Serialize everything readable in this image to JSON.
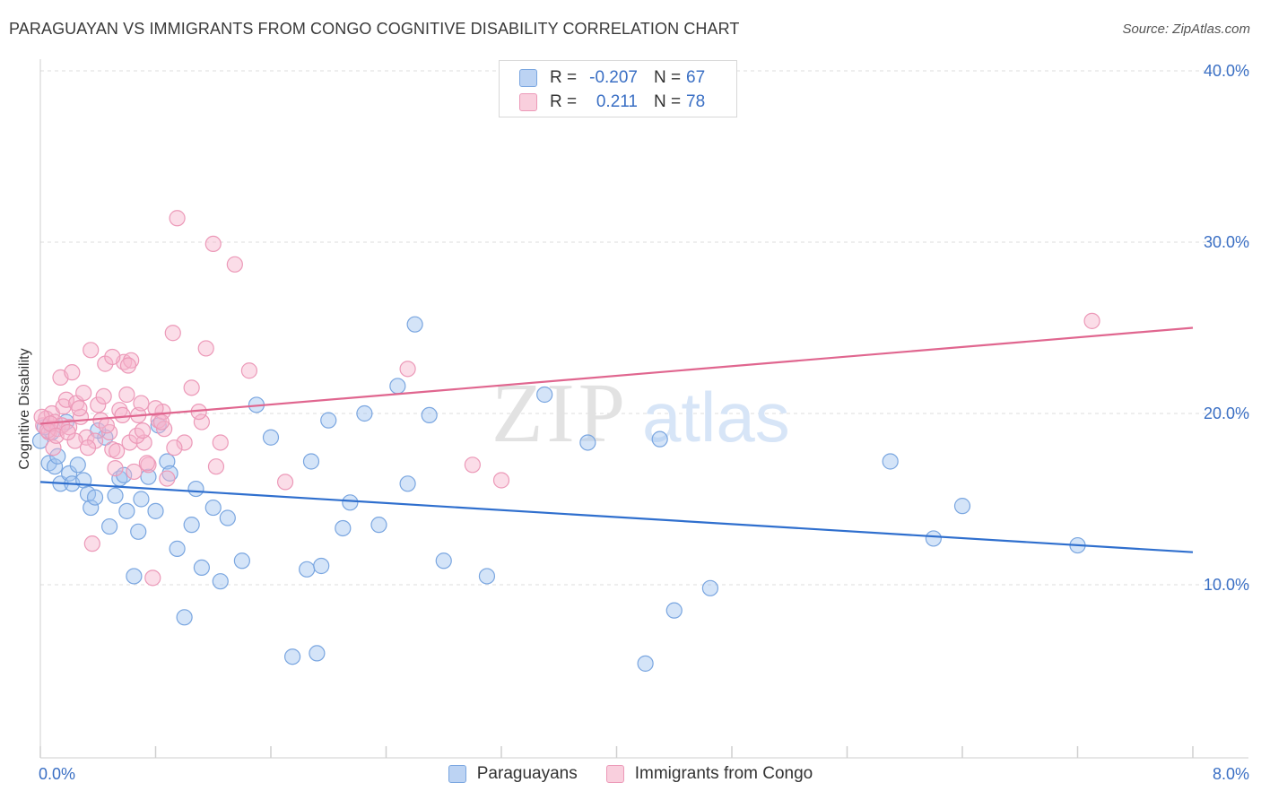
{
  "header": {
    "title": "PARAGUAYAN VS IMMIGRANTS FROM CONGO COGNITIVE DISABILITY CORRELATION CHART",
    "source": "Source: ZipAtlas.com"
  },
  "watermark": {
    "zip": "ZIP",
    "atlas": "atlas"
  },
  "legend": {
    "rows": [
      {
        "r_label": "R =",
        "r_value": "-0.207",
        "n_label": "N =",
        "n_value": "67",
        "color": "#a9c8f0",
        "border": "#6f9fdc"
      },
      {
        "r_label": "R =",
        "r_value": "0.211",
        "n_label": "N =",
        "n_value": "78",
        "color": "#f6bcd0",
        "border": "#e891b1"
      }
    ]
  },
  "bottom_legend": {
    "items": [
      {
        "label": "Paraguayans",
        "color": "#a9c8f0",
        "border": "#6f9fdc"
      },
      {
        "label": "Immigrants from Congo",
        "color": "#f6bcd0",
        "border": "#e891b1"
      }
    ]
  },
  "colors": {
    "blue_fill": "rgba(160,195,240,0.45)",
    "blue_stroke": "#7aa6e0",
    "blue_line": "#2f6fce",
    "pink_fill": "rgba(246,180,204,0.45)",
    "pink_stroke": "#ec99b8",
    "pink_line": "#e0668f",
    "tick_text": "#3a6fc4"
  },
  "chart_data": {
    "type": "scatter",
    "title": "PARAGUAYAN VS IMMIGRANTS FROM CONGO COGNITIVE DISABILITY CORRELATION CHART",
    "xlabel": "",
    "ylabel": "Cognitive Disability",
    "xlim": [
      0,
      8
    ],
    "ylim": [
      0,
      40
    ],
    "x_tick_labels": [
      {
        "value": 0,
        "label": "0.0%"
      },
      {
        "value": 8,
        "label": "8.0%"
      }
    ],
    "y_tick_labels": [
      {
        "value": 10,
        "label": "10.0%"
      },
      {
        "value": 20,
        "label": "20.0%"
      },
      {
        "value": 30,
        "label": "30.0%"
      },
      {
        "value": 40,
        "label": "40.0%"
      }
    ],
    "gridlines": [
      10,
      20,
      30,
      40
    ],
    "series": [
      {
        "name": "Paraguayans",
        "R": -0.207,
        "N": 67,
        "trend": {
          "x": [
            0,
            8
          ],
          "y": [
            16.0,
            11.9
          ]
        },
        "points": [
          [
            0.0,
            18.4
          ],
          [
            0.06,
            17.1
          ],
          [
            0.1,
            16.9
          ],
          [
            0.12,
            17.5
          ],
          [
            0.14,
            15.9
          ],
          [
            0.18,
            19.5
          ],
          [
            0.2,
            16.5
          ],
          [
            0.22,
            15.9
          ],
          [
            0.26,
            17.0
          ],
          [
            0.3,
            16.1
          ],
          [
            0.33,
            15.3
          ],
          [
            0.35,
            14.5
          ],
          [
            0.38,
            15.1
          ],
          [
            0.45,
            18.6
          ],
          [
            0.48,
            13.4
          ],
          [
            0.52,
            15.2
          ],
          [
            0.55,
            16.2
          ],
          [
            0.6,
            14.3
          ],
          [
            0.65,
            10.5
          ],
          [
            0.68,
            13.1
          ],
          [
            0.7,
            15.0
          ],
          [
            0.75,
            16.3
          ],
          [
            0.8,
            14.3
          ],
          [
            0.82,
            19.3
          ],
          [
            0.88,
            17.2
          ],
          [
            0.9,
            16.5
          ],
          [
            0.95,
            12.1
          ],
          [
            1.0,
            8.1
          ],
          [
            1.05,
            13.5
          ],
          [
            1.12,
            11.0
          ],
          [
            1.2,
            14.5
          ],
          [
            1.25,
            10.2
          ],
          [
            1.3,
            13.9
          ],
          [
            1.4,
            11.4
          ],
          [
            1.5,
            20.5
          ],
          [
            1.6,
            18.6
          ],
          [
            1.75,
            5.8
          ],
          [
            1.85,
            10.9
          ],
          [
            1.88,
            17.2
          ],
          [
            1.92,
            6.0
          ],
          [
            1.95,
            11.1
          ],
          [
            2.0,
            19.6
          ],
          [
            2.1,
            13.3
          ],
          [
            2.15,
            14.8
          ],
          [
            2.25,
            20.0
          ],
          [
            2.35,
            13.5
          ],
          [
            2.48,
            21.6
          ],
          [
            2.55,
            15.9
          ],
          [
            2.6,
            25.2
          ],
          [
            2.7,
            19.9
          ],
          [
            2.8,
            11.4
          ],
          [
            3.1,
            10.5
          ],
          [
            3.5,
            21.1
          ],
          [
            3.8,
            18.3
          ],
          [
            4.2,
            5.4
          ],
          [
            4.3,
            18.5
          ],
          [
            4.4,
            8.5
          ],
          [
            4.65,
            9.8
          ],
          [
            5.9,
            17.2
          ],
          [
            6.2,
            12.7
          ],
          [
            6.4,
            14.6
          ],
          [
            7.2,
            12.3
          ],
          [
            0.08,
            18.9
          ],
          [
            0.03,
            19.2
          ],
          [
            0.4,
            19.0
          ],
          [
            0.58,
            16.4
          ],
          [
            1.08,
            15.6
          ]
        ]
      },
      {
        "name": "Immigrants from Congo",
        "R": 0.211,
        "N": 78,
        "trend": {
          "x": [
            0,
            8
          ],
          "y": [
            19.4,
            25.0
          ]
        },
        "points": [
          [
            0.02,
            19.3
          ],
          [
            0.04,
            19.7
          ],
          [
            0.06,
            18.9
          ],
          [
            0.08,
            20.0
          ],
          [
            0.1,
            19.5
          ],
          [
            0.12,
            19.1
          ],
          [
            0.14,
            22.1
          ],
          [
            0.16,
            20.4
          ],
          [
            0.18,
            20.8
          ],
          [
            0.2,
            19.2
          ],
          [
            0.22,
            22.4
          ],
          [
            0.25,
            20.6
          ],
          [
            0.28,
            19.8
          ],
          [
            0.3,
            21.2
          ],
          [
            0.32,
            18.6
          ],
          [
            0.35,
            23.7
          ],
          [
            0.38,
            18.4
          ],
          [
            0.4,
            20.5
          ],
          [
            0.42,
            19.6
          ],
          [
            0.45,
            22.9
          ],
          [
            0.48,
            18.9
          ],
          [
            0.5,
            17.9
          ],
          [
            0.52,
            16.8
          ],
          [
            0.55,
            20.2
          ],
          [
            0.58,
            23.0
          ],
          [
            0.6,
            21.1
          ],
          [
            0.62,
            18.3
          ],
          [
            0.65,
            16.6
          ],
          [
            0.68,
            19.9
          ],
          [
            0.7,
            20.6
          ],
          [
            0.72,
            18.3
          ],
          [
            0.75,
            17.0
          ],
          [
            0.78,
            10.4
          ],
          [
            0.82,
            19.6
          ],
          [
            0.85,
            20.1
          ],
          [
            0.88,
            16.2
          ],
          [
            0.92,
            24.7
          ],
          [
            0.95,
            31.4
          ],
          [
            1.0,
            18.3
          ],
          [
            1.05,
            21.5
          ],
          [
            1.12,
            19.5
          ],
          [
            1.15,
            23.8
          ],
          [
            1.2,
            29.9
          ],
          [
            1.25,
            18.3
          ],
          [
            1.35,
            28.7
          ],
          [
            1.45,
            22.5
          ],
          [
            1.7,
            16.0
          ],
          [
            2.55,
            22.6
          ],
          [
            3.0,
            17.0
          ],
          [
            3.2,
            16.1
          ],
          [
            7.3,
            25.4
          ],
          [
            0.05,
            19.0
          ],
          [
            0.09,
            18.0
          ],
          [
            0.15,
            19.3
          ],
          [
            0.24,
            18.4
          ],
          [
            0.33,
            18.0
          ],
          [
            0.36,
            12.4
          ],
          [
            0.44,
            21.0
          ],
          [
            0.5,
            23.3
          ],
          [
            0.57,
            19.9
          ],
          [
            0.63,
            23.1
          ],
          [
            0.67,
            18.7
          ],
          [
            0.74,
            17.1
          ],
          [
            0.8,
            20.3
          ],
          [
            0.86,
            19.1
          ],
          [
            1.1,
            20.1
          ],
          [
            1.22,
            16.9
          ],
          [
            0.01,
            19.8
          ],
          [
            0.07,
            19.4
          ],
          [
            0.11,
            18.7
          ],
          [
            0.19,
            18.9
          ],
          [
            0.27,
            20.3
          ],
          [
            0.46,
            19.3
          ],
          [
            0.53,
            17.8
          ],
          [
            0.61,
            22.8
          ],
          [
            0.71,
            19.0
          ],
          [
            0.84,
            19.5
          ],
          [
            0.93,
            18.0
          ]
        ]
      }
    ]
  }
}
